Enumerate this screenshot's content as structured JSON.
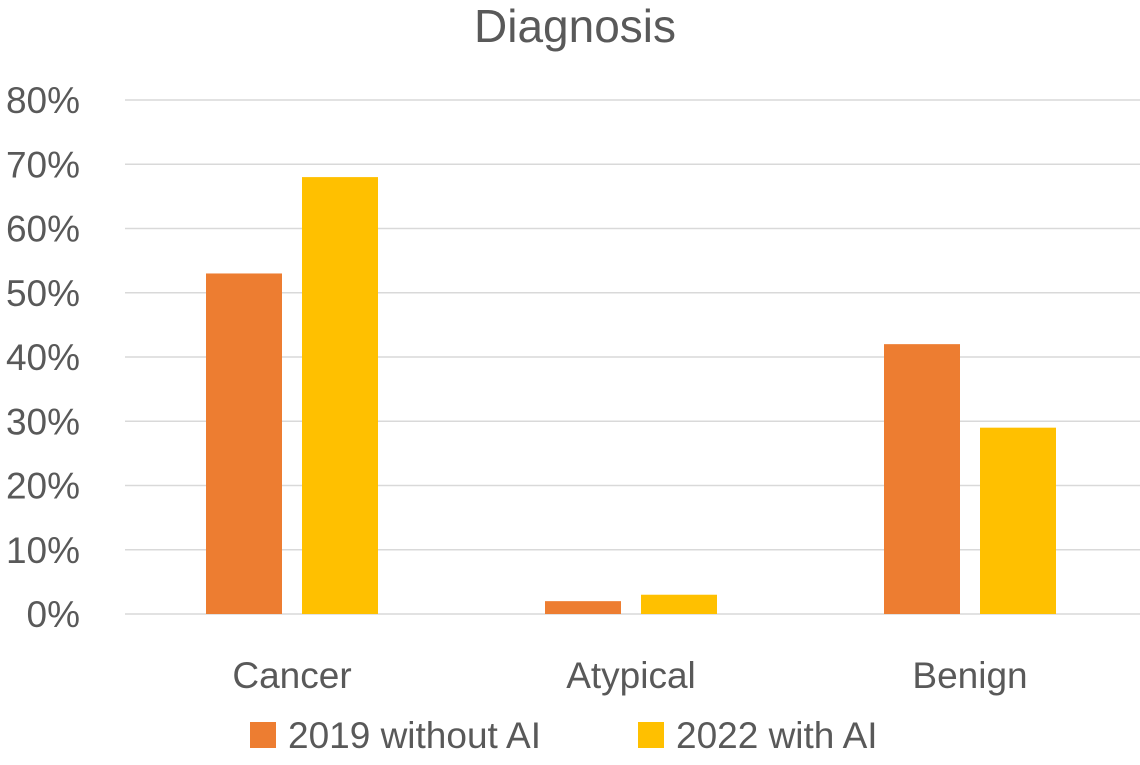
{
  "chart_data": {
    "type": "bar",
    "title": "Diagnosis",
    "xlabel": "",
    "ylabel": "",
    "categories": [
      "Cancer",
      "Atypical",
      "Benign"
    ],
    "series": [
      {
        "name": "2019 without AI",
        "values": [
          53,
          2,
          42
        ],
        "color": "#ED7D31"
      },
      {
        "name": "2022 with AI",
        "values": [
          68,
          3,
          29
        ],
        "color": "#FFC000"
      }
    ],
    "ylim": [
      0,
      80
    ],
    "yticks": [
      "0%",
      "10%",
      "20%",
      "30%",
      "40%",
      "50%",
      "60%",
      "70%",
      "80%"
    ],
    "value_unit": "%",
    "grid": true,
    "legend_position": "bottom"
  }
}
